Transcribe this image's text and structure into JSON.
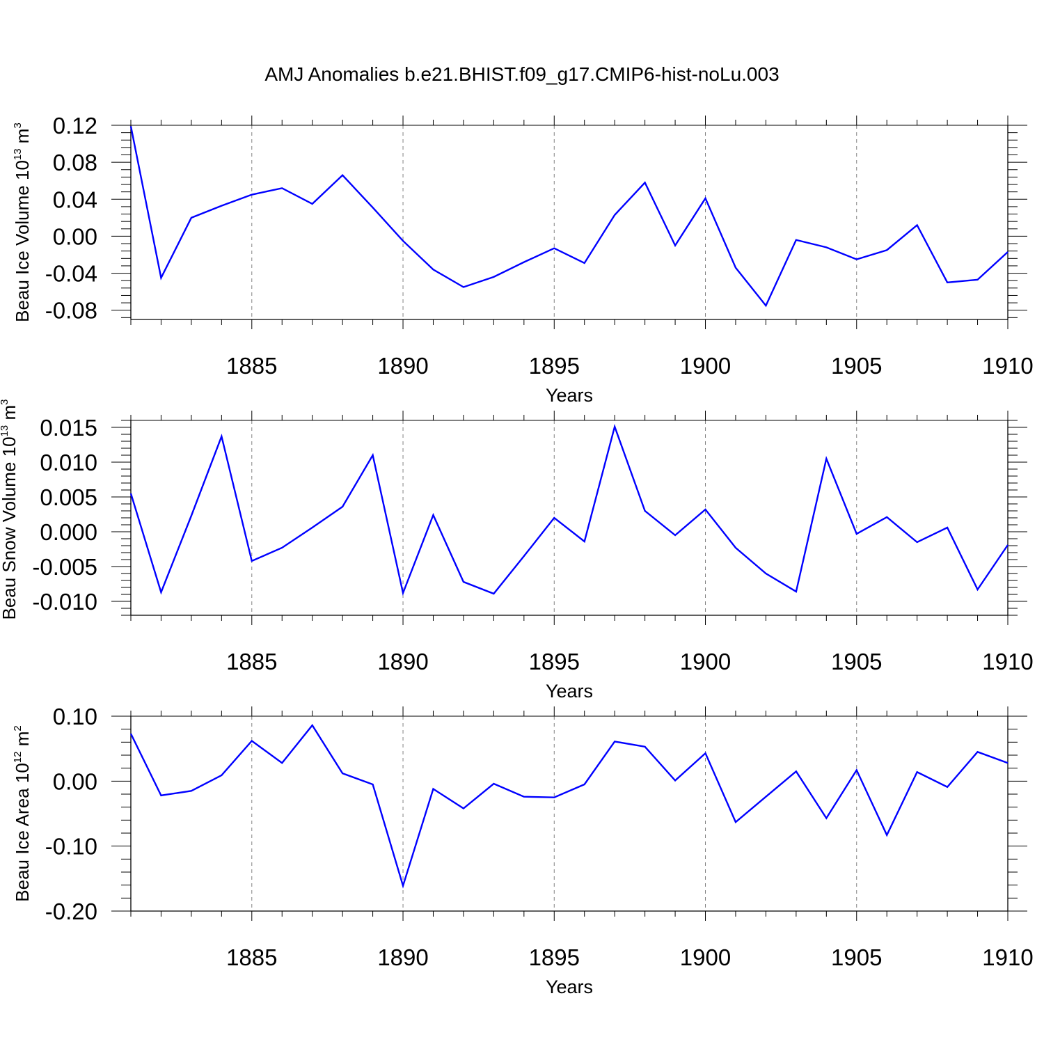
{
  "figure_title": "AMJ Anomalies b.e21.BHIST.f09_g17.CMIP6-hist-noLu.003",
  "chart_data": [
    {
      "type": "line",
      "title": "",
      "xlabel": "Years",
      "ylabel": "Beau Ice Volume",
      "ylabel_unit_base": "10",
      "ylabel_unit_exp": "13",
      "ylabel_unit_after": " m",
      "ylabel_unit_exp2": "3",
      "xlim": [
        1881,
        1910
      ],
      "ylim": [
        -0.09,
        0.12
      ],
      "xticks": [
        1885,
        1890,
        1895,
        1900,
        1905,
        1910
      ],
      "xtick_labels": [
        "1885",
        "1890",
        "1895",
        "1900",
        "1905",
        "1910"
      ],
      "yticks": [
        0.12,
        0.08,
        0.04,
        0.0,
        -0.04,
        -0.08
      ],
      "ytick_labels": [
        "0.12",
        "0.08",
        "0.04",
        "0.00",
        "-0.04",
        "-0.08"
      ],
      "grid": "vertical dashed at major x ticks",
      "line_color": "#0000ff",
      "x": [
        1881,
        1882,
        1883,
        1884,
        1885,
        1886,
        1887,
        1888,
        1889,
        1890,
        1891,
        1892,
        1893,
        1894,
        1895,
        1896,
        1897,
        1898,
        1899,
        1900,
        1901,
        1902,
        1903,
        1904,
        1905,
        1906,
        1907,
        1908,
        1909,
        1910
      ],
      "series": [
        {
          "values": [
            0.119,
            -0.045,
            0.02,
            0.033,
            0.045,
            0.052,
            0.035,
            0.066,
            0.031,
            -0.005,
            -0.036,
            -0.055,
            -0.044,
            -0.028,
            -0.013,
            -0.029,
            0.023,
            0.058,
            -0.01,
            0.041,
            -0.034,
            -0.075,
            -0.004,
            -0.012,
            -0.025,
            -0.015,
            0.012,
            -0.05,
            -0.047,
            -0.017
          ]
        }
      ]
    },
    {
      "type": "line",
      "title": "",
      "xlabel": "Years",
      "ylabel": "Beau Snow Volume",
      "ylabel_unit_base": "10",
      "ylabel_unit_exp": "13",
      "ylabel_unit_after": " m",
      "ylabel_unit_exp2": "3",
      "xlim": [
        1881,
        1910
      ],
      "ylim": [
        -0.012,
        0.016
      ],
      "xticks": [
        1885,
        1890,
        1895,
        1900,
        1905,
        1910
      ],
      "xtick_labels": [
        "1885",
        "1890",
        "1895",
        "1900",
        "1905",
        "1910"
      ],
      "yticks": [
        0.015,
        0.01,
        0.005,
        0.0,
        -0.005,
        -0.01
      ],
      "ytick_labels": [
        "0.015",
        "0.010",
        "0.005",
        "0.000",
        "-0.005",
        "-0.010"
      ],
      "grid": "vertical dashed at major x ticks",
      "line_color": "#0000ff",
      "x": [
        1881,
        1882,
        1883,
        1884,
        1885,
        1886,
        1887,
        1888,
        1889,
        1890,
        1891,
        1892,
        1893,
        1894,
        1895,
        1896,
        1897,
        1898,
        1899,
        1900,
        1901,
        1902,
        1903,
        1904,
        1905,
        1906,
        1907,
        1908,
        1909,
        1910
      ],
      "series": [
        {
          "values": [
            0.0055,
            -0.0087,
            0.0023,
            0.0137,
            -0.0042,
            -0.0023,
            0.0006,
            0.0036,
            0.011,
            -0.0088,
            0.0024,
            -0.0072,
            -0.0089,
            -0.0035,
            0.002,
            -0.0014,
            0.0151,
            0.003,
            -0.0005,
            0.0032,
            -0.0023,
            -0.006,
            -0.0086,
            0.0105,
            -0.0003,
            0.0021,
            -0.0015,
            0.0006,
            -0.0083,
            -0.0019
          ]
        }
      ]
    },
    {
      "type": "line",
      "title": "",
      "xlabel": "Years",
      "ylabel": "Beau Ice Area",
      "ylabel_unit_base": "10",
      "ylabel_unit_exp": "12",
      "ylabel_unit_after": " m",
      "ylabel_unit_exp2": "2",
      "xlim": [
        1881,
        1910
      ],
      "ylim": [
        -0.2,
        0.1
      ],
      "xticks": [
        1885,
        1890,
        1895,
        1900,
        1905,
        1910
      ],
      "xtick_labels": [
        "1885",
        "1890",
        "1895",
        "1900",
        "1905",
        "1910"
      ],
      "yticks": [
        0.1,
        0.0,
        -0.1,
        -0.2
      ],
      "ytick_labels": [
        "0.10",
        "0.00",
        "-0.10",
        "-0.20"
      ],
      "grid": "vertical dashed at major x ticks",
      "line_color": "#0000ff",
      "x": [
        1881,
        1882,
        1883,
        1884,
        1885,
        1886,
        1887,
        1888,
        1889,
        1890,
        1891,
        1892,
        1893,
        1894,
        1895,
        1896,
        1897,
        1898,
        1899,
        1900,
        1901,
        1902,
        1903,
        1904,
        1905,
        1906,
        1907,
        1908,
        1909,
        1910
      ],
      "series": [
        {
          "values": [
            0.073,
            -0.022,
            -0.015,
            0.009,
            0.062,
            0.028,
            0.086,
            0.012,
            -0.005,
            -0.161,
            -0.012,
            -0.042,
            -0.004,
            -0.024,
            -0.025,
            -0.005,
            0.061,
            0.053,
            0.001,
            0.043,
            -0.063,
            -0.024,
            0.015,
            -0.057,
            0.017,
            -0.083,
            0.014,
            -0.009,
            0.045,
            0.028
          ]
        }
      ]
    }
  ]
}
